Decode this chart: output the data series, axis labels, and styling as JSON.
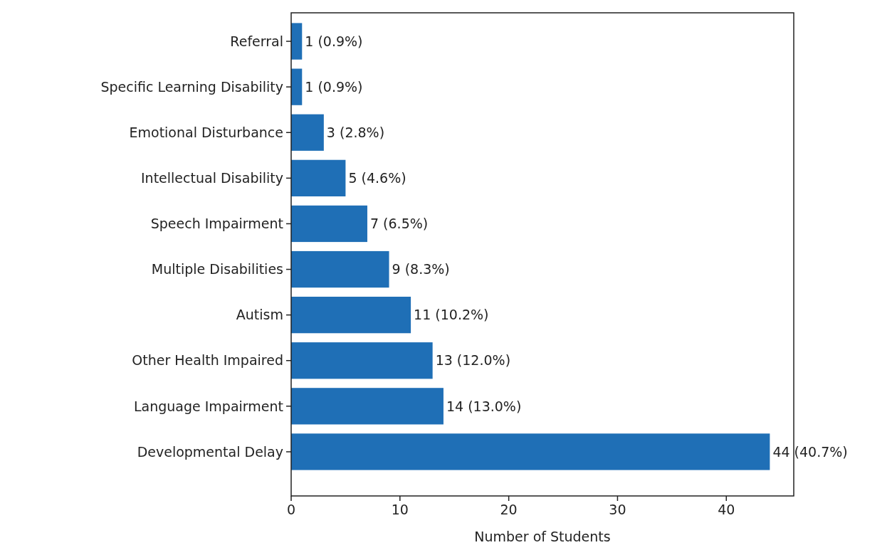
{
  "chart_data": {
    "type": "bar",
    "orientation": "horizontal",
    "xlabel": "Number of Students",
    "categories": [
      "Referral",
      "Specific Learning Disability",
      "Emotional Disturbance",
      "Intellectual Disability",
      "Speech Impairment",
      "Multiple Disabilities",
      "Autism",
      "Other Health Impaired",
      "Language Impairment",
      "Developmental Delay"
    ],
    "values": [
      1,
      1,
      3,
      5,
      7,
      9,
      11,
      13,
      14,
      44
    ],
    "value_labels": [
      "1 (0.9%)",
      "1 (0.9%)",
      "3 (2.8%)",
      "5 (4.6%)",
      "7 (6.5%)",
      "9 (8.3%)",
      "11 (10.2%)",
      "13 (12.0%)",
      "14 (13.0%)",
      "44 (40.7%)"
    ],
    "color": "#1f6fb6",
    "xlim": [
      0,
      46.2
    ],
    "xticks": [
      0,
      10,
      20,
      30,
      40
    ],
    "grid": false
  }
}
